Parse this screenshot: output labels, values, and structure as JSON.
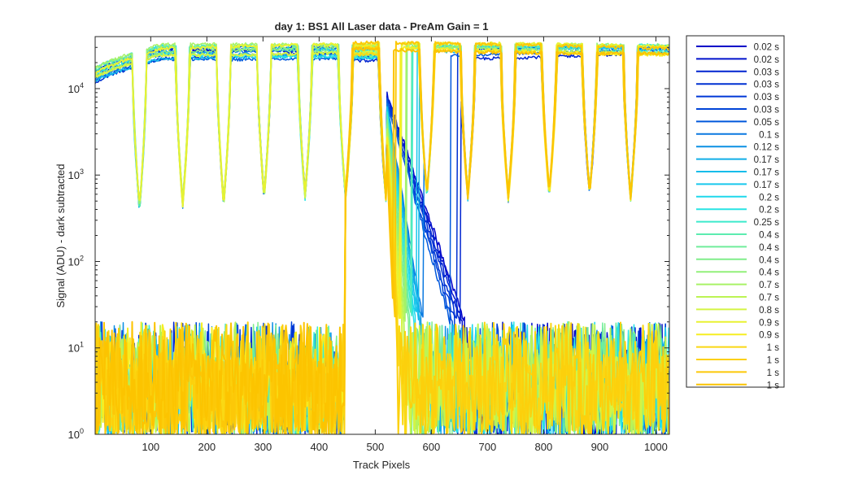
{
  "chart_data": {
    "type": "line",
    "title": "day 1: BS1  All Laser data - PreAm Gain = 1",
    "xlabel": "Track Pixels",
    "ylabel": "Signal (ADU) - dark subtracted",
    "yscale": "log",
    "xlim": [
      1,
      1024
    ],
    "ylim": [
      1,
      40000
    ],
    "grid": false,
    "legend_position": "outside-right",
    "x_ticks": [
      100,
      200,
      300,
      400,
      500,
      600,
      700,
      800,
      900,
      1000
    ],
    "y_ticks": [
      {
        "value": 1,
        "base": "10",
        "exp": "0"
      },
      {
        "value": 10,
        "base": "10",
        "exp": "1"
      },
      {
        "value": 100,
        "base": "10",
        "exp": "2"
      },
      {
        "value": 1000,
        "base": "10",
        "exp": "3"
      },
      {
        "value": 10000,
        "base": "10",
        "exp": "4"
      }
    ],
    "track_centers": [
      120,
      192,
      264,
      336,
      408,
      468,
      552,
      630,
      702,
      774,
      846,
      918,
      990
    ],
    "dip_positions": [
      80,
      157,
      230,
      302,
      375,
      447,
      520,
      592,
      665,
      737,
      810,
      882,
      955
    ],
    "dip_minimum_values": [
      420,
      480,
      480,
      600,
      600,
      600,
      480,
      620,
      600,
      580,
      620,
      660,
      560
    ],
    "plateau_level_range": [
      15000,
      35000
    ],
    "noise_floor_range": [
      1,
      20
    ],
    "falloff_region": {
      "start": 520,
      "end": 660,
      "from_value": 9000,
      "to_value": 20
    },
    "series": [
      {
        "name": "0.02 s",
        "color": "#0000c8"
      },
      {
        "name": "0.02 s",
        "color": "#0012cc"
      },
      {
        "name": "0.03 s",
        "color": "#0024d0"
      },
      {
        "name": "0.03 s",
        "color": "#0030d2"
      },
      {
        "name": "0.03 s",
        "color": "#0038d6"
      },
      {
        "name": "0.03 s",
        "color": "#0044d8"
      },
      {
        "name": "0.05 s",
        "color": "#0058dc"
      },
      {
        "name": "0.1 s",
        "color": "#0a78e0"
      },
      {
        "name": "0.12 s",
        "color": "#0c90e4"
      },
      {
        "name": "0.17 s",
        "color": "#10aee8"
      },
      {
        "name": "0.17 s",
        "color": "#14bcea"
      },
      {
        "name": "0.17 s",
        "color": "#18c8ec"
      },
      {
        "name": "0.2 s",
        "color": "#1ed8ec"
      },
      {
        "name": "0.2 s",
        "color": "#28e4e4"
      },
      {
        "name": "0.25 s",
        "color": "#3ceacc"
      },
      {
        "name": "0.4 s",
        "color": "#5cecb0"
      },
      {
        "name": "0.4 s",
        "color": "#70ee9c"
      },
      {
        "name": "0.4 s",
        "color": "#80ee8a"
      },
      {
        "name": "0.4 s",
        "color": "#92f07a"
      },
      {
        "name": "0.7 s",
        "color": "#a8f266"
      },
      {
        "name": "0.7 s",
        "color": "#bcf454"
      },
      {
        "name": "0.8 s",
        "color": "#d4f444"
      },
      {
        "name": "0.9 s",
        "color": "#e8f232"
      },
      {
        "name": "0.9 s",
        "color": "#f6ee22"
      },
      {
        "name": "1 s",
        "color": "#fad814"
      },
      {
        "name": "1 s",
        "color": "#fcd00c"
      },
      {
        "name": "1 s",
        "color": "#fcc808"
      },
      {
        "name": "1 s",
        "color": "#fcc400"
      }
    ]
  }
}
